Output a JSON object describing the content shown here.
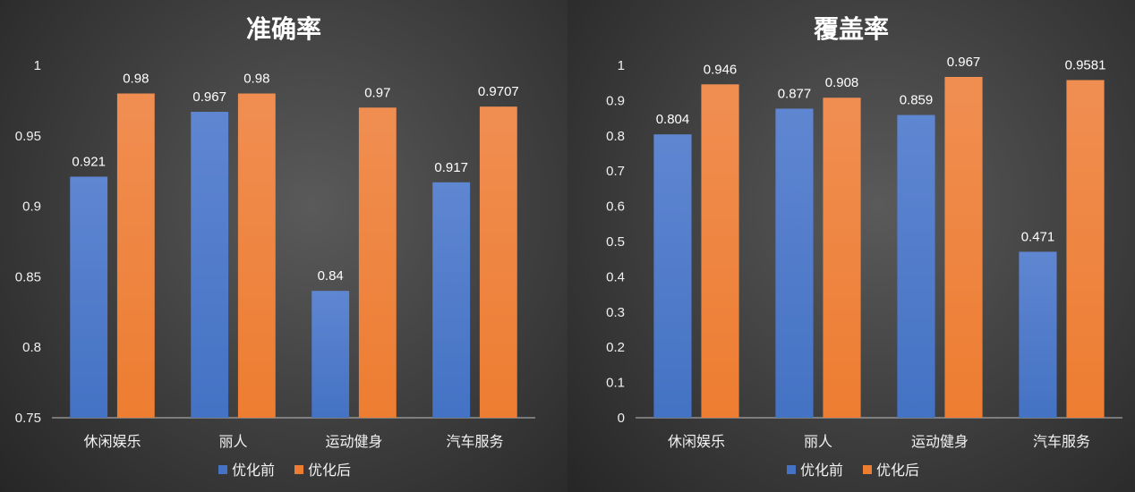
{
  "colors": {
    "series_1": "#4472c4",
    "series_2": "#ed7d31",
    "axis": "#bfbfbf"
  },
  "chart_data": [
    {
      "type": "bar",
      "title": "准确率",
      "categories": [
        "休闲娱乐",
        "丽人",
        "运动健身",
        "汽车服务"
      ],
      "series": [
        {
          "name": "优化前",
          "values": [
            0.921,
            0.967,
            0.84,
            0.917
          ]
        },
        {
          "name": "优化后",
          "values": [
            0.98,
            0.98,
            0.97,
            0.9707
          ]
        }
      ],
      "data_labels": [
        [
          "0.921",
          "0.967",
          "0.84",
          "0.917"
        ],
        [
          "0.98",
          "0.98",
          "0.97",
          "0.9707"
        ]
      ],
      "ylim": [
        0.75,
        1
      ],
      "ticks": [
        "0.75",
        "0.8",
        "0.85",
        "0.9",
        "0.95",
        "1"
      ],
      "xlabel": "",
      "ylabel": "",
      "grid": false,
      "legend": "bottom"
    },
    {
      "type": "bar",
      "title": "覆盖率",
      "categories": [
        "休闲娱乐",
        "丽人",
        "运动健身",
        "汽车服务"
      ],
      "series": [
        {
          "name": "优化前",
          "values": [
            0.804,
            0.877,
            0.859,
            0.471
          ]
        },
        {
          "name": "优化后",
          "values": [
            0.946,
            0.908,
            0.967,
            0.9581
          ]
        }
      ],
      "data_labels": [
        [
          "0.804",
          "0.877",
          "0.859",
          "0.471"
        ],
        [
          "0.946",
          "0.908",
          "0.967",
          "0.9581"
        ]
      ],
      "ylim": [
        0,
        1
      ],
      "ticks": [
        "0",
        "0.1",
        "0.2",
        "0.3",
        "0.4",
        "0.5",
        "0.6",
        "0.7",
        "0.8",
        "0.9",
        "1"
      ],
      "xlabel": "",
      "ylabel": "",
      "grid": false,
      "legend": "bottom"
    }
  ]
}
